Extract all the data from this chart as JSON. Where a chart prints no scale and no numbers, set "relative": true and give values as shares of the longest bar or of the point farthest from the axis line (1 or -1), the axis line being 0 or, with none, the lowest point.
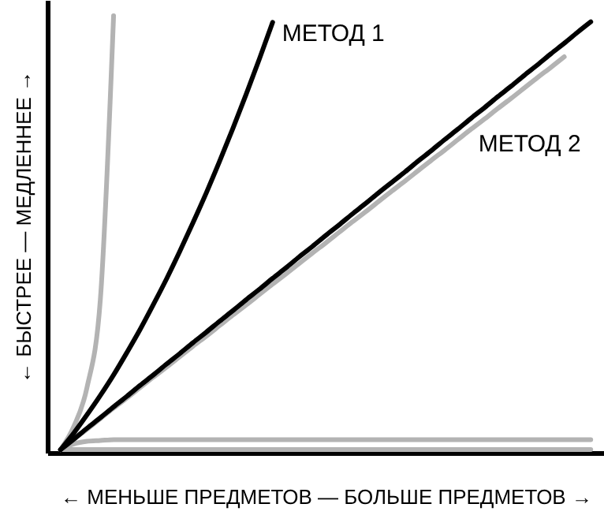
{
  "chart_data": {
    "type": "line",
    "relative": true,
    "xlabel": "← МЕНЬШЕ ПРЕДМЕТОВ — БОЛЬШЕ ПРЕДМЕТОВ →",
    "ylabel": "← БЫСТРЕЕ — МЕДЛЕННЕЕ →",
    "grid": false,
    "tick_labels": false,
    "marker": "none",
    "line_style": "solid",
    "categories": [
      null,
      null,
      null,
      null,
      null,
      null,
      null,
      null,
      null,
      null,
      null,
      null,
      null,
      null,
      null,
      null,
      null,
      null,
      null,
      null,
      null,
      null,
      null,
      null,
      null,
      null,
      null,
      null,
      null,
      null,
      null,
      null,
      null,
      null,
      null,
      null,
      null,
      null,
      null,
      null,
      null
    ],
    "series": [
      {
        "color": "#b3b3b3",
        "values": [
          0.007,
          0.06,
          0.15,
          0.35,
          1.0,
          null,
          null,
          null,
          null,
          null,
          null,
          null,
          null,
          null,
          null,
          null,
          null,
          null,
          null,
          null,
          null,
          null,
          null,
          null,
          null,
          null,
          null,
          null,
          null,
          null,
          null,
          null,
          null,
          null,
          null,
          null,
          null,
          null,
          null,
          null,
          null
        ]
      },
      {
        "color": "#b3b3b3",
        "values": [
          0.007,
          0.031,
          0.054,
          0.078,
          0.102,
          0.125,
          0.149,
          0.173,
          0.196,
          0.22,
          0.244,
          0.267,
          0.291,
          0.315,
          0.338,
          0.362,
          0.386,
          0.409,
          0.433,
          0.457,
          0.48,
          0.504,
          0.528,
          0.551,
          0.575,
          0.599,
          0.622,
          0.646,
          0.67,
          0.693,
          0.717,
          0.741,
          0.764,
          0.788,
          0.811,
          0.835,
          0.859,
          0.882,
          0.906,
          null,
          null
        ]
      },
      {
        "color": "#b3b3b3",
        "values": [
          0.007,
          0.02,
          0.026,
          0.028,
          0.03,
          0.03,
          0.03,
          0.03,
          0.03,
          0.03,
          0.03,
          0.03,
          0.03,
          0.03,
          0.03,
          0.03,
          0.03,
          0.03,
          0.03,
          0.03,
          0.03,
          0.03,
          0.03,
          0.03,
          0.03,
          0.03,
          0.03,
          0.03,
          0.03,
          0.03,
          0.03,
          0.03,
          0.03,
          0.03,
          0.03,
          0.03,
          0.03,
          0.03,
          0.03,
          0.03,
          0.03
        ]
      },
      {
        "color": "#b3b3b3",
        "values": [
          0.007,
          0.007,
          0.007,
          0.007,
          0.007,
          0.007,
          0.007,
          0.007,
          0.007,
          0.007,
          0.007,
          0.007,
          0.007,
          0.007,
          0.007,
          0.007,
          0.007,
          0.007,
          0.007,
          0.007,
          0.007,
          0.007,
          0.007,
          0.007,
          0.007,
          0.007,
          0.007,
          0.007,
          0.007,
          0.007,
          0.007,
          0.007,
          0.007,
          0.007,
          0.007,
          0.007,
          0.007,
          0.007,
          0.007,
          0.007,
          0.007
        ]
      },
      {
        "name": "МЕТОД 1",
        "color": "#000000",
        "values": [
          0.007,
          0.045,
          0.087,
          0.131,
          0.178,
          0.229,
          0.282,
          0.339,
          0.398,
          0.461,
          0.527,
          0.595,
          0.667,
          0.742,
          0.82,
          0.901,
          0.985,
          null,
          null,
          null,
          null,
          null,
          null,
          null,
          null,
          null,
          null,
          null,
          null,
          null,
          null,
          null,
          null,
          null,
          null,
          null,
          null,
          null,
          null,
          null,
          null
        ]
      },
      {
        "name": "МЕТОД 2",
        "color": "#000000",
        "values": [
          0.007,
          0.031,
          0.056,
          0.08,
          0.105,
          0.129,
          0.154,
          0.178,
          0.203,
          0.227,
          0.252,
          0.276,
          0.301,
          0.325,
          0.35,
          0.374,
          0.399,
          0.423,
          0.448,
          0.472,
          0.497,
          0.521,
          0.546,
          0.57,
          0.595,
          0.619,
          0.643,
          0.668,
          0.692,
          0.717,
          0.741,
          0.766,
          0.79,
          0.815,
          0.839,
          0.864,
          0.888,
          0.913,
          0.937,
          0.962,
          0.986
        ]
      }
    ]
  }
}
